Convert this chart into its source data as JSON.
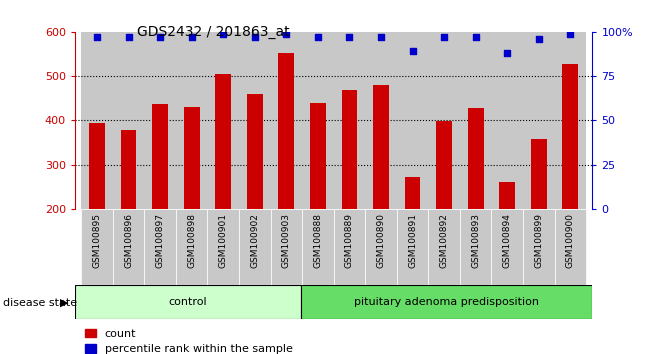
{
  "title": "GDS2432 / 201863_at",
  "categories": [
    "GSM100895",
    "GSM100896",
    "GSM100897",
    "GSM100898",
    "GSM100901",
    "GSM100902",
    "GSM100903",
    "GSM100888",
    "GSM100889",
    "GSM100890",
    "GSM100891",
    "GSM100892",
    "GSM100893",
    "GSM100894",
    "GSM100899",
    "GSM100900"
  ],
  "red_values": [
    393,
    378,
    437,
    430,
    505,
    460,
    553,
    440,
    468,
    480,
    272,
    398,
    428,
    260,
    357,
    527
  ],
  "blue_values": [
    97,
    97,
    97,
    97,
    99,
    97,
    99,
    97,
    97,
    97,
    89,
    97,
    97,
    88,
    96,
    99
  ],
  "control_count": 7,
  "disease_count": 9,
  "group1_label": "control",
  "group2_label": "pituitary adenoma predisposition",
  "ylim_left": [
    200,
    600
  ],
  "yticks_left": [
    200,
    300,
    400,
    500,
    600
  ],
  "ylim_right": [
    0,
    100
  ],
  "yticks_right": [
    0,
    25,
    50,
    75,
    100
  ],
  "ytick_right_labels": [
    "0",
    "25",
    "50",
    "75",
    "100%"
  ],
  "bar_color": "#cc0000",
  "blue_color": "#0000cc",
  "bg_color": "#c8c8c8",
  "group1_bg": "#ccffcc",
  "group2_bg": "#66dd66",
  "legend_red_label": "count",
  "legend_blue_label": "percentile rank within the sample",
  "grid_lines": [
    300,
    400,
    500
  ]
}
